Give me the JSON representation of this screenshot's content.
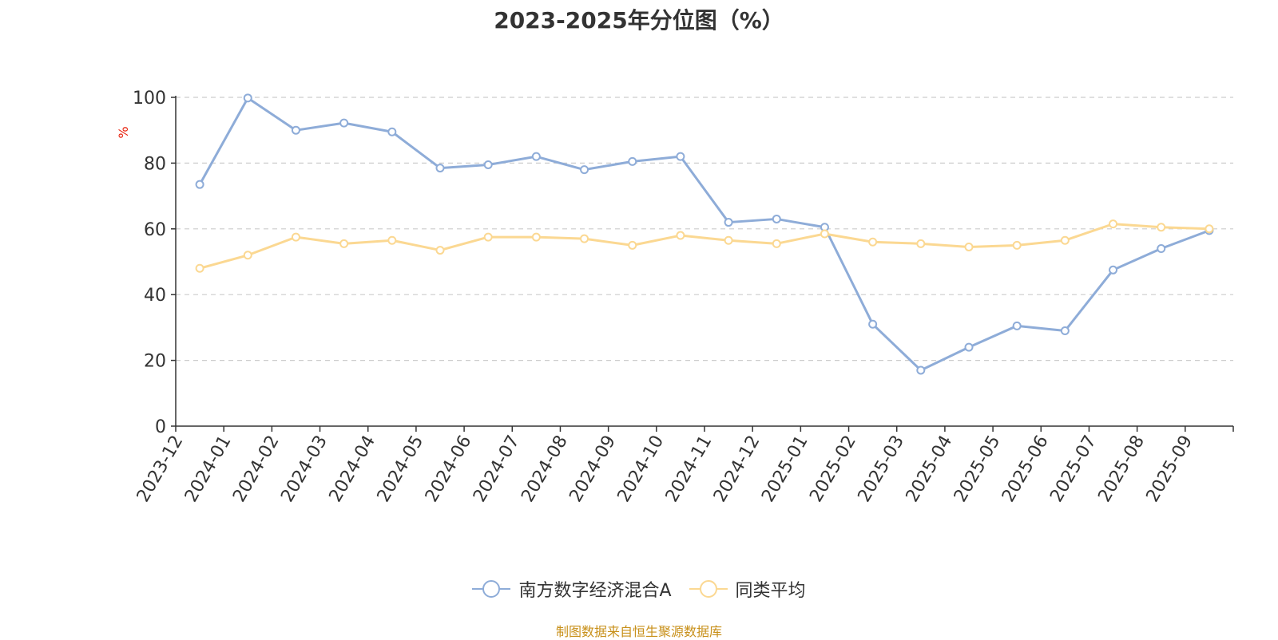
{
  "chart_data": {
    "type": "line",
    "title": "2023-2025年分位图（%）",
    "ylabel": "%",
    "xlabel": "",
    "ylim": [
      0,
      100
    ],
    "yticks": [
      "0",
      "20",
      "40",
      "60",
      "80",
      "100"
    ],
    "grid": true,
    "legend_position": "bottom",
    "categories": [
      "2023-12",
      "2024-01",
      "2024-02",
      "2024-03",
      "2024-04",
      "2024-05",
      "2024-06",
      "2024-07",
      "2024-08",
      "2024-09",
      "2024-10",
      "2024-11",
      "2024-12",
      "2025-01",
      "2025-02",
      "2025-03",
      "2025-04",
      "2025-05",
      "2025-06",
      "2025-07",
      "2025-08",
      "2025-09"
    ],
    "series": [
      {
        "name": "南方数字经济混合A",
        "color": "#8eacd8",
        "values": [
          73.5,
          99.8,
          90.0,
          92.2,
          89.5,
          78.5,
          79.5,
          82.0,
          78.0,
          80.5,
          82.0,
          62.0,
          63.0,
          60.5,
          31.0,
          17.0,
          24.0,
          30.5,
          29.0,
          47.5,
          54.0,
          59.5
        ]
      },
      {
        "name": "同类平均",
        "color": "#fbd892",
        "values": [
          48.0,
          52.0,
          57.5,
          55.5,
          56.5,
          53.5,
          57.5,
          57.5,
          57.0,
          55.0,
          58.0,
          56.5,
          55.5,
          58.5,
          56.0,
          55.5,
          54.5,
          55.0,
          56.5,
          61.5,
          60.5,
          60.0
        ]
      }
    ],
    "source": "制图数据来自恒生聚源数据库"
  }
}
